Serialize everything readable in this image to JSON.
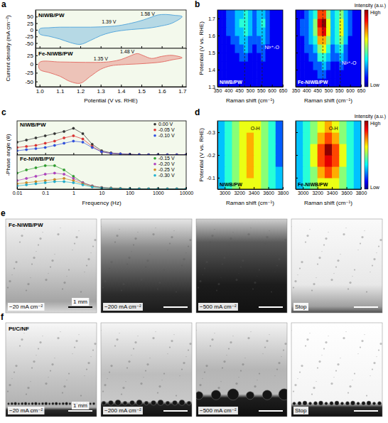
{
  "chart_data": [
    {
      "type": "line",
      "title": "NiWB/PW",
      "y_label": "Current density (mA cm⁻²)",
      "xlim": [
        0.98,
        1.72
      ],
      "xticks": [
        {
          "value": 1,
          "label": "1.0"
        },
        1.1,
        1.2,
        1.3,
        1.4,
        1.5,
        1.6,
        1.7
      ],
      "ylim": [
        -70,
        75
      ],
      "yticks": [
        -50,
        -25,
        0,
        25,
        50
      ],
      "tick_labels": "y",
      "color": "#5aa9dc",
      "x": [
        1.0,
        1.05,
        1.1,
        1.15,
        1.2,
        1.25,
        1.3,
        1.35,
        1.39,
        1.45,
        1.5,
        1.55,
        1.58,
        1.62,
        1.66,
        1.7,
        1.65,
        1.6,
        1.55,
        1.5,
        1.45,
        1.4,
        1.35,
        1.3,
        1.25,
        1.2,
        1.15,
        1.1,
        1.05,
        1.0
      ],
      "values": [
        3,
        8,
        10,
        10,
        10,
        10,
        11,
        13,
        16,
        25,
        35,
        48,
        56,
        58,
        55,
        50,
        25,
        15,
        8,
        4,
        1,
        -3,
        -10,
        -22,
        -40,
        -55,
        -48,
        -35,
        -25,
        -15
      ],
      "annotations": [
        {
          "text": "1.39 V",
          "x": 1.39,
          "y": 30
        },
        {
          "text": "1.58 V",
          "x": 1.58,
          "y": 60
        }
      ]
    },
    {
      "type": "line",
      "title": "Fe-NiWB/PW",
      "x_label": "Potential (V vs. RHE)",
      "xlim": [
        0.98,
        1.72
      ],
      "xticks": [
        {
          "value": 1,
          "label": "1.0"
        },
        1.1,
        1.2,
        1.3,
        1.4,
        1.5,
        1.6,
        1.7
      ],
      "ylim": [
        -65,
        45
      ],
      "yticks": [
        -50,
        -25,
        0,
        25
      ],
      "tick_labels": true,
      "color": "#e4736b",
      "x": [
        1.0,
        1.1,
        1.2,
        1.3,
        1.35,
        1.4,
        1.44,
        1.48,
        1.51,
        1.55,
        1.6,
        1.65,
        1.7,
        1.65,
        1.6,
        1.5,
        1.4,
        1.35,
        1.3,
        1.25,
        1.2,
        1.15,
        1.1,
        1.05,
        1.0
      ],
      "values": [
        5,
        6,
        5,
        5,
        7,
        13,
        22,
        30,
        24,
        16,
        22,
        25,
        18,
        12,
        6,
        1,
        -2,
        -5,
        -15,
        -35,
        -55,
        -50,
        -35,
        -25,
        -15
      ],
      "annotations": [
        {
          "text": "1.35 V",
          "x": 1.35,
          "y": 15
        },
        {
          "text": "1.48 V",
          "x": 1.48,
          "y": 35
        }
      ]
    },
    {
      "type": "heatmap",
      "title": "NiWB/PW",
      "y_label": "Potential (V vs. RHE)",
      "x_label": "Raman shift (cm⁻¹)",
      "xlim": [
        350,
        650
      ],
      "xticks": [
        350,
        400,
        450,
        500,
        550,
        600,
        650
      ],
      "ylim": [
        1.3,
        1.75
      ],
      "yticks": [
        1.3,
        1.4,
        1.5,
        1.6,
        1.7
      ],
      "tick_labels": true,
      "x": [
        360,
        380,
        400,
        420,
        440,
        460,
        480,
        500,
        520,
        540,
        560,
        580,
        600,
        620,
        640
      ],
      "y": [
        1.325,
        1.375,
        1.425,
        1.475,
        1.525,
        1.575,
        1.625,
        1.675,
        1.725
      ],
      "z": [
        [
          1,
          1,
          1,
          1,
          1,
          1,
          1,
          1,
          1,
          1,
          1,
          1,
          1,
          1,
          1
        ],
        [
          1,
          1,
          1,
          1,
          1,
          1,
          1,
          1,
          1,
          1,
          1,
          1,
          1,
          1,
          1
        ],
        [
          1,
          1,
          1,
          1,
          1,
          1,
          1,
          1,
          1,
          1,
          1,
          1,
          1,
          1,
          1
        ],
        [
          1,
          1,
          1,
          1,
          1,
          2,
          2,
          1,
          1,
          1,
          2,
          1,
          1,
          1,
          1
        ],
        [
          1,
          1,
          1,
          1,
          2,
          2,
          3,
          2,
          1,
          2,
          2,
          1,
          1,
          1,
          1
        ],
        [
          1,
          1,
          1,
          2,
          2,
          3,
          3,
          2,
          2,
          2,
          3,
          2,
          1,
          1,
          1
        ],
        [
          1,
          1,
          2,
          2,
          3,
          3,
          4,
          3,
          2,
          3,
          3,
          2,
          1,
          1,
          1
        ],
        [
          1,
          1,
          2,
          2,
          3,
          4,
          4,
          3,
          2,
          3,
          4,
          2,
          1,
          1,
          1
        ],
        [
          1,
          1,
          2,
          2,
          3,
          3,
          4,
          3,
          2,
          3,
          3,
          2,
          1,
          1,
          1
        ]
      ],
      "vlines": [
        475,
        555
      ],
      "annotations": [
        {
          "text": "Ni³⁺-O",
          "x": 600,
          "y": 1.52
        }
      ]
    },
    {
      "type": "heatmap",
      "title": "Fe-NiWB/PW",
      "x_label": "Raman shift (cm⁻¹)",
      "xlim": [
        350,
        650
      ],
      "xticks": [
        350,
        400,
        450,
        500,
        550,
        600,
        650
      ],
      "ylim": [
        1.3,
        1.75
      ],
      "yticks": [
        1.3,
        1.4,
        1.5,
        1.6,
        1.7
      ],
      "tick_labels": "x",
      "x": [
        360,
        380,
        400,
        420,
        440,
        460,
        480,
        500,
        520,
        540,
        560,
        580,
        600,
        620,
        640
      ],
      "y": [
        1.325,
        1.375,
        1.425,
        1.475,
        1.525,
        1.575,
        1.625,
        1.675,
        1.725
      ],
      "z": [
        [
          1,
          1,
          1,
          1,
          1,
          1,
          1,
          1,
          1,
          1,
          1,
          1,
          1,
          1,
          1
        ],
        [
          1,
          1,
          1,
          1,
          1,
          2,
          2,
          1,
          1,
          1,
          1,
          1,
          1,
          1,
          1
        ],
        [
          1,
          1,
          1,
          1,
          2,
          2,
          3,
          2,
          1,
          1,
          2,
          1,
          1,
          1,
          1
        ],
        [
          1,
          1,
          1,
          2,
          2,
          4,
          4,
          3,
          2,
          2,
          3,
          2,
          1,
          1,
          1
        ],
        [
          1,
          1,
          2,
          2,
          3,
          5,
          6,
          4,
          2,
          3,
          4,
          2,
          1,
          1,
          1
        ],
        [
          1,
          1,
          2,
          3,
          4,
          7,
          7,
          5,
          3,
          4,
          5,
          3,
          1,
          1,
          1
        ],
        [
          1,
          2,
          2,
          3,
          5,
          8,
          9,
          6,
          3,
          4,
          6,
          3,
          2,
          1,
          1
        ],
        [
          1,
          2,
          2,
          3,
          5,
          9,
          10,
          6,
          3,
          4,
          6,
          3,
          2,
          1,
          1
        ],
        [
          1,
          1,
          2,
          3,
          4,
          8,
          8,
          5,
          3,
          4,
          5,
          3,
          2,
          1,
          1
        ]
      ],
      "vlines": [
        475,
        555
      ],
      "annotations": [
        {
          "text": "Ni³⁺-O",
          "x": 595,
          "y": 1.43
        }
      ],
      "colorbar": {
        "title": "Intensity (a.u.)",
        "range": [
          0,
          10
        ],
        "labels": [
          {
            "value": 10,
            "label": "High"
          },
          {
            "value": 0,
            "label": "Low"
          }
        ]
      }
    },
    {
      "type": "line",
      "title": "NiWB/PW",
      "y_label": "-Phase angle (θ)",
      "log": "x",
      "xlim": [
        0.01,
        10000
      ],
      "xticks": [
        0.01,
        0.1,
        1,
        10,
        100,
        1000,
        10000
      ],
      "ylim": [
        0,
        32
      ],
      "tick_labels": false,
      "marker": "circle",
      "legend": "upper right",
      "x": [
        0.01,
        0.0215,
        0.0464,
        0.1,
        0.215,
        0.464,
        1,
        2.15,
        4.64,
        10,
        21.5,
        46.4,
        100,
        215,
        464,
        1000,
        2150,
        4640,
        10000
      ],
      "series": [
        {
          "name": "0.00 V",
          "color": "#333333",
          "values": [
            12,
            14,
            16,
            18,
            20,
            22,
            25,
            20,
            10,
            4,
            2,
            1,
            0.5,
            0.3,
            0.2,
            0.2,
            0.2,
            0.2,
            0.2
          ]
        },
        {
          "name": "-0.05 V",
          "color": "#e03030",
          "values": [
            7,
            8,
            9,
            11,
            13,
            16,
            18,
            15,
            8,
            3,
            1.5,
            1,
            0.5,
            0.3,
            0.2,
            0.2,
            0.2,
            0.2,
            0.2
          ]
        },
        {
          "name": "-0.10 V",
          "color": "#3050e0",
          "values": [
            4,
            5,
            6,
            7,
            9,
            11,
            13,
            12,
            7,
            3,
            1.5,
            1,
            0.5,
            0.3,
            0.2,
            0.2,
            0.2,
            0.2,
            0.2
          ]
        }
      ]
    },
    {
      "type": "line",
      "title": "Fe-NiWB/PW",
      "x_label": "Frequency (Hz)",
      "log": "x",
      "xlim": [
        0.01,
        10000
      ],
      "xticks": [
        0.01,
        0.1,
        1,
        10,
        100,
        1000,
        10000
      ],
      "ylim": [
        0,
        32
      ],
      "tick_labels": "x",
      "marker": "circle",
      "legend": "upper right",
      "x": [
        0.01,
        0.0215,
        0.0464,
        0.1,
        0.215,
        0.464,
        1,
        2.15,
        4.64,
        10,
        21.5,
        46.4,
        100,
        215,
        464,
        1000,
        2150,
        4640,
        10000
      ],
      "series": [
        {
          "name": "-0.15 V",
          "color": "#2ca02c",
          "values": [
            15,
            18,
            20,
            22,
            22,
            18,
            12,
            6,
            3,
            1.5,
            1,
            0.5,
            0.3,
            0.2,
            0.2,
            0.2,
            0.2,
            0.2,
            0.2
          ]
        },
        {
          "name": "-0.20 V",
          "color": "#b040c0",
          "values": [
            8,
            10,
            12,
            14,
            15,
            14,
            10,
            6,
            3,
            1.5,
            1,
            0.5,
            0.3,
            0.2,
            0.2,
            0.2,
            0.2,
            0.2,
            0.2
          ]
        },
        {
          "name": "-0.25 V",
          "color": "#d08a20",
          "values": [
            5,
            6,
            7,
            8,
            9,
            10,
            8,
            5,
            2.5,
            1.2,
            0.8,
            0.5,
            0.3,
            0.2,
            0.2,
            0.2,
            0.2,
            0.2,
            0.2
          ]
        },
        {
          "name": "-0.30 V",
          "color": "#20b0d0",
          "values": [
            3,
            4,
            5,
            6,
            7,
            7,
            6,
            4,
            2,
            1,
            0.6,
            0.4,
            0.3,
            0.2,
            0.2,
            0.2,
            0.2,
            0.2,
            0.2
          ]
        }
      ]
    },
    {
      "type": "heatmap",
      "title": "NiWB/PW",
      "y_label": "Potential (V vs. RHE)",
      "x_label": "Raman shift (cm⁻¹)",
      "xlim": [
        2900,
        3800
      ],
      "xticks": [
        3000,
        3200,
        3400,
        3600,
        3800
      ],
      "ylim": [
        -0.05,
        -0.35
      ],
      "yticks": [
        -0.1,
        -0.2,
        -0.3
      ],
      "tick_labels": true,
      "x": [
        2950,
        3050,
        3150,
        3250,
        3350,
        3450,
        3550,
        3650,
        3750
      ],
      "y": [
        -0.075,
        -0.125,
        -0.175,
        -0.225,
        -0.275,
        -0.325
      ],
      "z": [
        [
          3,
          4,
          5,
          6,
          6,
          6,
          5,
          4,
          3
        ],
        [
          3,
          4,
          5,
          6,
          7,
          6,
          5,
          4,
          3
        ],
        [
          3,
          4,
          5,
          6,
          7,
          6,
          5,
          4,
          2
        ],
        [
          3,
          4,
          5,
          6,
          7,
          6,
          5,
          4,
          2
        ],
        [
          3,
          4,
          5,
          6,
          7,
          6,
          5,
          4,
          2
        ],
        [
          3,
          4,
          5,
          6,
          6,
          6,
          5,
          4,
          2
        ]
      ],
      "annotations": [
        {
          "text": "O-H",
          "x": 3420,
          "y": -0.31
        }
      ]
    },
    {
      "type": "heatmap",
      "title": "Fe-NiWB/PW",
      "x_label": "Raman shift (cm⁻¹)",
      "xlim": [
        2900,
        3800
      ],
      "xticks": [
        3000,
        3200,
        3400,
        3600,
        3800
      ],
      "ylim": [
        -0.05,
        -0.35
      ],
      "yticks": [
        -0.1,
        -0.2,
        -0.3
      ],
      "tick_labels": "x",
      "x": [
        2950,
        3050,
        3150,
        3250,
        3350,
        3450,
        3550,
        3650,
        3750
      ],
      "y": [
        -0.075,
        -0.125,
        -0.175,
        -0.225,
        -0.275,
        -0.325
      ],
      "z": [
        [
          3,
          4,
          5,
          6,
          6,
          6,
          5,
          4,
          3
        ],
        [
          3,
          4,
          5,
          7,
          8,
          7,
          5,
          4,
          3
        ],
        [
          3,
          4,
          6,
          8,
          9,
          8,
          6,
          4,
          3
        ],
        [
          3,
          4,
          6,
          8,
          10,
          8,
          6,
          4,
          3
        ],
        [
          3,
          4,
          5,
          7,
          8,
          7,
          5,
          4,
          3
        ],
        [
          3,
          4,
          5,
          6,
          7,
          6,
          5,
          4,
          3
        ]
      ],
      "annotations": [
        {
          "text": "O-H",
          "x": 3420,
          "y": -0.31
        }
      ],
      "colorbar": {
        "title": "Intensity (a.u.)",
        "range": [
          0,
          10
        ],
        "labels": [
          {
            "value": 10,
            "label": "High"
          },
          {
            "value": 0,
            "label": "Low"
          }
        ]
      }
    }
  ],
  "panel_labels": [
    "a",
    "b",
    "c",
    "d",
    "e",
    "f"
  ],
  "photos": {
    "scale_bar": "1 mm",
    "rows": [
      {
        "title": "Fe-NiWB/PW",
        "frames": [
          "−20 mA cm⁻²",
          "−200 mA cm⁻²",
          "−500 mA cm⁻²",
          "Stop"
        ]
      },
      {
        "title": "Pt/C/NF",
        "frames": [
          "−20 mA cm⁻²",
          "−200 mA cm⁻²",
          "−500 mA cm⁻²",
          "Stop"
        ]
      }
    ]
  }
}
